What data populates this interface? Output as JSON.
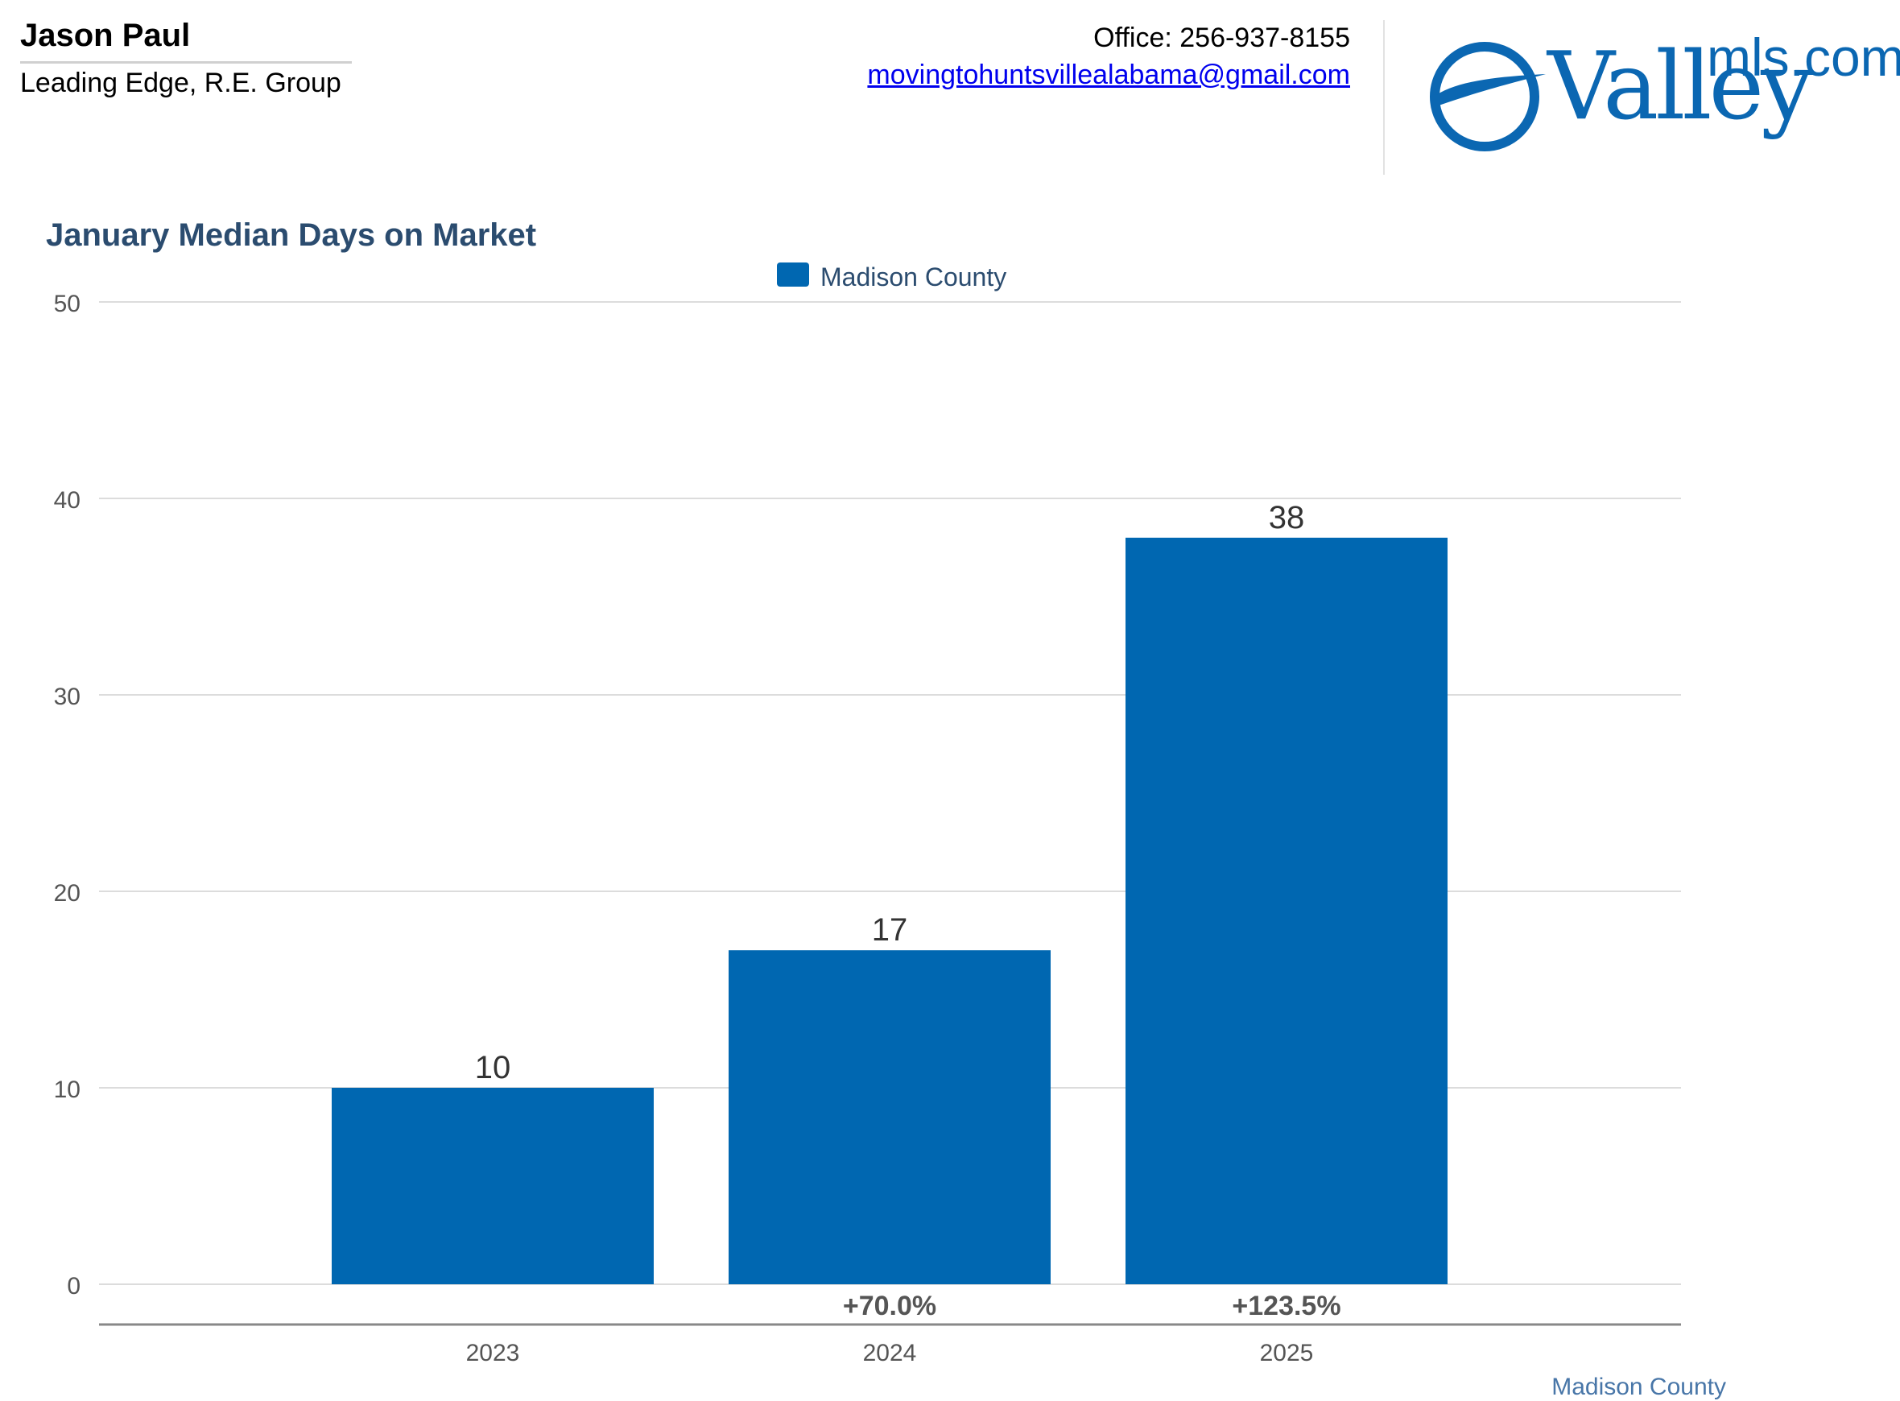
{
  "header": {
    "agent_name": "Jason Paul",
    "company": "Leading Edge, R.E. Group",
    "office": "Office: 256-937-8155",
    "email": "movingtohuntsvillealabama@gmail.com",
    "logo_main": "Valley",
    "logo_sub": "mls.com"
  },
  "colors": {
    "bar": "#0067b1",
    "title": "#2b4c6f",
    "grid": "#dcdcdc",
    "logo": "#0b67b2"
  },
  "chart_data": {
    "type": "bar",
    "title": "January Median Days on Market",
    "categories": [
      "2023",
      "2024",
      "2025"
    ],
    "series": [
      {
        "name": "Madison County",
        "values": [
          10,
          17,
          38
        ]
      }
    ],
    "percent_change": [
      "",
      "+70.0%",
      "+123.5%"
    ],
    "ylim": [
      0,
      50
    ],
    "yticks": [
      0,
      10,
      20,
      30,
      40,
      50
    ],
    "grid": true,
    "legend": "top-center"
  },
  "footer": {
    "label": "Madison County"
  }
}
